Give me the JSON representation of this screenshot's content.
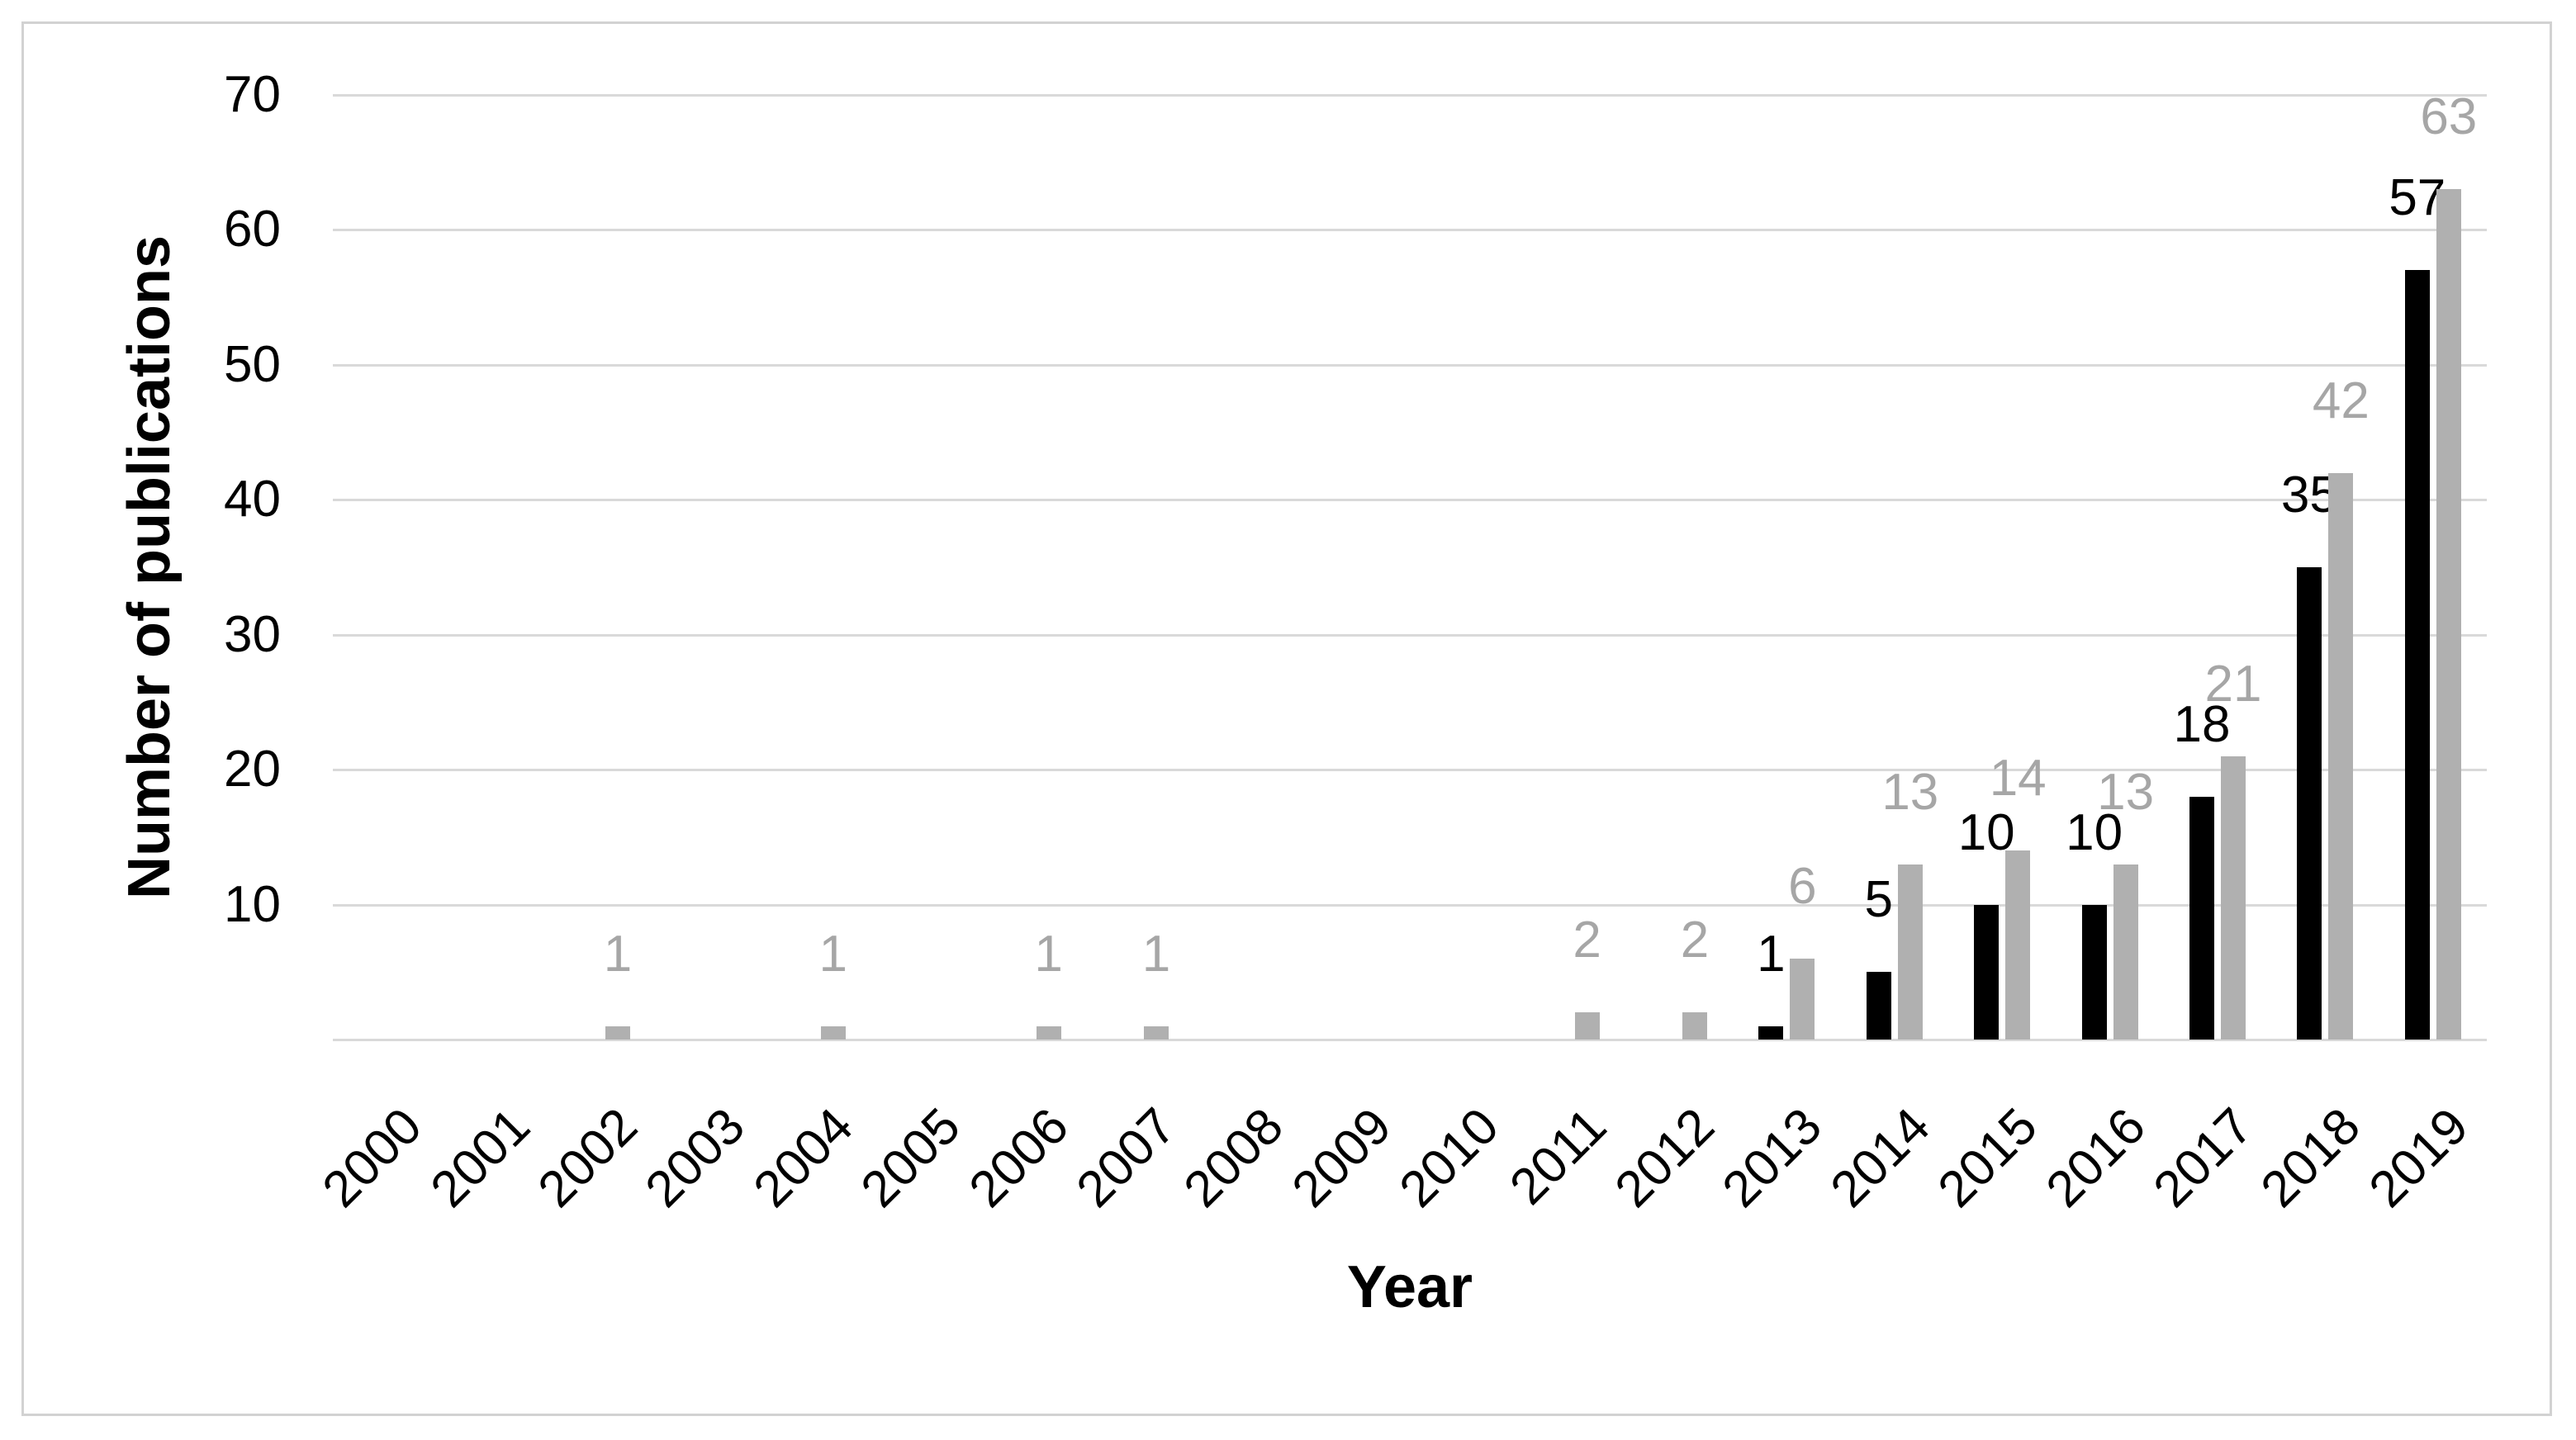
{
  "chart_data": {
    "type": "bar",
    "title": "",
    "xlabel": "Year",
    "ylabel": "Number of publications",
    "categories": [
      "2000",
      "2001",
      "2002",
      "2003",
      "2004",
      "2005",
      "2006",
      "2007",
      "2008",
      "2009",
      "2010",
      "2011",
      "2012",
      "2013",
      "2014",
      "2015",
      "2016",
      "2017",
      "2018",
      "2019"
    ],
    "series": [
      {
        "name": "black",
        "color": "#000000",
        "label_color": "#000000",
        "values": [
          0,
          0,
          0,
          0,
          0,
          0,
          0,
          0,
          0,
          0,
          0,
          0,
          0,
          1,
          5,
          10,
          10,
          18,
          35,
          57
        ]
      },
      {
        "name": "gray",
        "color": "#b0b0b0",
        "label_color": "#a6a6a6",
        "values": [
          0,
          0,
          1,
          0,
          1,
          0,
          1,
          1,
          0,
          0,
          0,
          2,
          2,
          6,
          13,
          14,
          13,
          21,
          42,
          63
        ]
      }
    ],
    "ylim": [
      0,
      70
    ],
    "yticks": [
      10,
      20,
      30,
      40,
      50,
      60,
      70
    ],
    "grid": true,
    "gridline_color": "#d9d9d9",
    "legend_position": "none",
    "data_labels": "outside-end"
  }
}
